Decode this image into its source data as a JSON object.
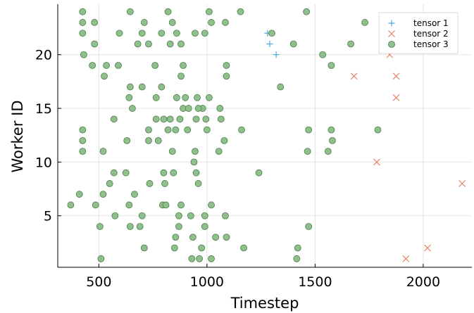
{
  "chart_data": {
    "type": "scatter",
    "xlabel": "Timestep",
    "ylabel": "Worker ID",
    "xlim": [
      310,
      2225
    ],
    "ylim": [
      0.2,
      24.7
    ],
    "xticks": [
      500,
      1000,
      1500,
      2000
    ],
    "yticks": [
      5,
      10,
      15,
      20
    ],
    "grid": true,
    "legend_position": "top-right",
    "series": [
      {
        "name": "tensor 1",
        "marker": "cross",
        "color": "#4aa8e0",
        "x": [
          1280,
          1290,
          1320
        ],
        "y": [
          22,
          21,
          20
        ]
      },
      {
        "name": "tensor 2",
        "marker": "x",
        "color": "#e8836a",
        "x": [
          1680,
          1845,
          1875,
          1875,
          1785,
          2180,
          2020,
          1920
        ],
        "y": [
          18,
          20,
          18,
          16,
          10,
          8,
          2,
          1
        ]
      },
      {
        "name": "tensor 3",
        "marker": "circle",
        "color": "#8dc08a",
        "x": [
          425,
          645,
          820,
          1010,
          1155,
          1460,
          425,
          480,
          710,
          840,
          1020,
          1085,
          1730,
          425,
          595,
          700,
          790,
          860,
          945,
          990,
          1300,
          430,
          480,
          680,
          730,
          830,
          880,
          1400,
          1665,
          1535,
          470,
          535,
          590,
          760,
          890,
          1090,
          1575,
          525,
          880,
          1090,
          645,
          700,
          790,
          1340,
          640,
          765,
          860,
          900,
          955,
          1010,
          655,
          890,
          980,
          1060,
          915,
          960,
          1790,
          570,
          765,
          800,
          830,
          875,
          950,
          995,
          1065,
          1160,
          425,
          730,
          820,
          855,
          910,
          1000,
          1470,
          1575,
          425,
          630,
          730,
          775,
          1080,
          1580,
          425,
          520,
          840,
          945,
          1055,
          1465,
          1560,
          940,
          1240,
          570,
          625,
          800,
          845,
          950,
          550,
          735,
          805,
          960,
          520,
          665,
          410,
          370,
          485,
          640,
          795,
          810,
          880,
          1020,
          575,
          700,
          870,
          925,
          990,
          1085,
          505,
          645,
          690,
          870,
          990,
          1470,
          855,
          935,
          1040,
          1090,
          710,
          850,
          975,
          1170,
          1420,
          510,
          930,
          965,
          1020,
          1415
        ],
        "y": [
          24,
          24,
          24,
          24,
          24,
          24,
          23,
          23,
          23,
          23,
          23,
          23,
          23,
          22,
          22,
          22,
          22,
          22,
          22,
          22,
          22,
          20,
          21,
          21,
          21,
          21,
          21,
          21,
          21,
          20,
          19,
          19,
          19,
          19,
          19,
          19,
          19,
          18,
          18,
          18,
          17,
          17,
          17,
          17,
          16,
          16,
          16,
          16,
          16,
          16,
          15,
          15,
          15,
          15,
          15,
          15,
          13,
          14,
          14,
          14,
          14,
          14,
          14,
          14,
          14,
          13,
          13,
          13,
          13,
          13,
          13,
          13,
          13,
          13,
          12,
          12,
          12,
          12,
          12,
          12,
          11,
          11,
          11,
          11,
          11,
          11,
          11,
          10,
          9,
          9,
          9,
          9,
          9,
          9,
          8,
          8,
          8,
          8,
          7,
          7,
          7,
          6,
          6,
          6,
          6,
          6,
          6,
          6,
          5,
          5,
          5,
          5,
          5,
          5,
          4,
          4,
          4,
          4,
          4,
          4,
          3,
          3,
          3,
          3,
          2,
          2,
          2,
          2,
          2,
          1,
          1,
          1,
          1,
          1
        ]
      }
    ]
  }
}
